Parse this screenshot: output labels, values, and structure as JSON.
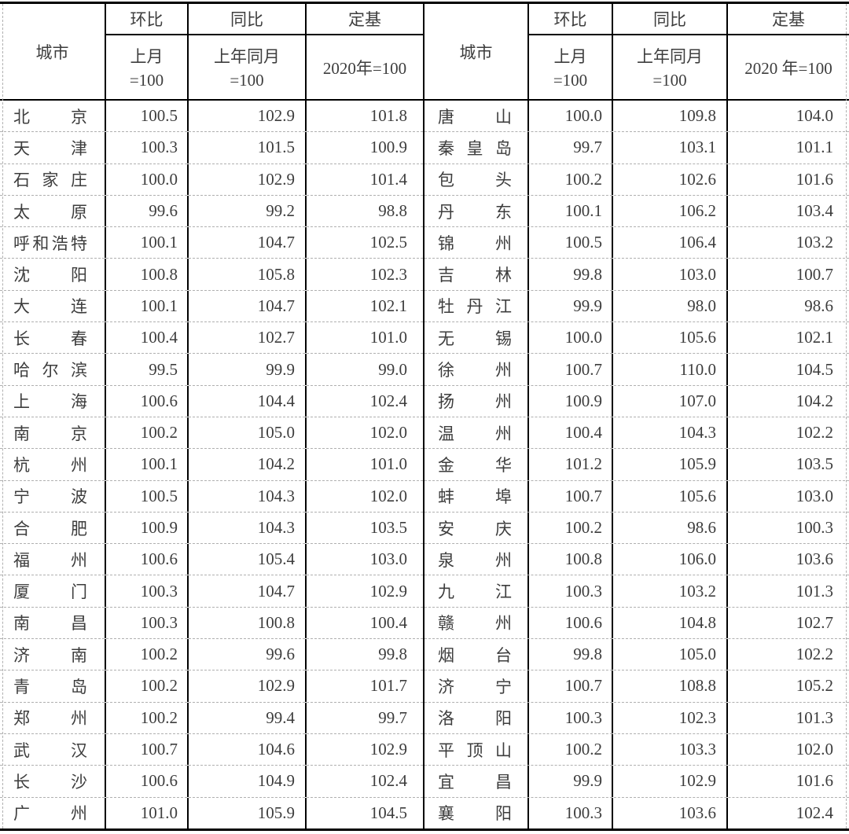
{
  "colors": {
    "border": "#000000",
    "row_divider": "#b0b0b0",
    "text": "#3d3d3d",
    "background": "#ffffff"
  },
  "header": {
    "city_label": "城市",
    "columns": [
      {
        "top": "环比",
        "line1": "上月",
        "line2": "=100"
      },
      {
        "top": "同比",
        "line1": "上年同月",
        "line2": "=100"
      },
      {
        "top": "定基",
        "line1": "2020年=100"
      }
    ],
    "right_base_label": "2020 年=100"
  },
  "left_rows": [
    {
      "city": "北京",
      "mom": "100.5",
      "yoy": "102.9",
      "base": "101.8"
    },
    {
      "city": "天津",
      "mom": "100.3",
      "yoy": "101.5",
      "base": "100.9"
    },
    {
      "city": "石家庄",
      "mom": "100.0",
      "yoy": "102.9",
      "base": "101.4"
    },
    {
      "city": "太原",
      "mom": "99.6",
      "yoy": "99.2",
      "base": "98.8"
    },
    {
      "city": "呼和浩特",
      "mom": "100.1",
      "yoy": "104.7",
      "base": "102.5"
    },
    {
      "city": "沈阳",
      "mom": "100.8",
      "yoy": "105.8",
      "base": "102.3"
    },
    {
      "city": "大连",
      "mom": "100.1",
      "yoy": "104.7",
      "base": "102.1"
    },
    {
      "city": "长春",
      "mom": "100.4",
      "yoy": "102.7",
      "base": "101.0"
    },
    {
      "city": "哈尔滨",
      "mom": "99.5",
      "yoy": "99.9",
      "base": "99.0"
    },
    {
      "city": "上海",
      "mom": "100.6",
      "yoy": "104.4",
      "base": "102.4"
    },
    {
      "city": "南京",
      "mom": "100.2",
      "yoy": "105.0",
      "base": "102.0"
    },
    {
      "city": "杭州",
      "mom": "100.1",
      "yoy": "104.2",
      "base": "101.0"
    },
    {
      "city": "宁波",
      "mom": "100.5",
      "yoy": "104.3",
      "base": "102.0"
    },
    {
      "city": "合肥",
      "mom": "100.9",
      "yoy": "104.3",
      "base": "103.5"
    },
    {
      "city": "福州",
      "mom": "100.6",
      "yoy": "105.4",
      "base": "103.0"
    },
    {
      "city": "厦门",
      "mom": "100.3",
      "yoy": "104.7",
      "base": "102.9"
    },
    {
      "city": "南昌",
      "mom": "100.3",
      "yoy": "100.8",
      "base": "100.4"
    },
    {
      "city": "济南",
      "mom": "100.2",
      "yoy": "99.6",
      "base": "99.8"
    },
    {
      "city": "青岛",
      "mom": "100.2",
      "yoy": "102.9",
      "base": "101.7"
    },
    {
      "city": "郑州",
      "mom": "100.2",
      "yoy": "99.4",
      "base": "99.7"
    },
    {
      "city": "武汉",
      "mom": "100.7",
      "yoy": "104.6",
      "base": "102.9"
    },
    {
      "city": "长沙",
      "mom": "100.6",
      "yoy": "104.9",
      "base": "102.4"
    },
    {
      "city": "广州",
      "mom": "101.0",
      "yoy": "105.9",
      "base": "104.5"
    }
  ],
  "right_rows": [
    {
      "city": "唐山",
      "mom": "100.0",
      "yoy": "109.8",
      "base": "104.0"
    },
    {
      "city": "秦皇岛",
      "mom": "99.7",
      "yoy": "103.1",
      "base": "101.1"
    },
    {
      "city": "包头",
      "mom": "100.2",
      "yoy": "102.6",
      "base": "101.6"
    },
    {
      "city": "丹东",
      "mom": "100.1",
      "yoy": "106.2",
      "base": "103.4"
    },
    {
      "city": "锦州",
      "mom": "100.5",
      "yoy": "106.4",
      "base": "103.2"
    },
    {
      "city": "吉林",
      "mom": "99.8",
      "yoy": "103.0",
      "base": "100.7"
    },
    {
      "city": "牡丹江",
      "mom": "99.9",
      "yoy": "98.0",
      "base": "98.6"
    },
    {
      "city": "无锡",
      "mom": "100.0",
      "yoy": "105.6",
      "base": "102.1"
    },
    {
      "city": "徐州",
      "mom": "100.7",
      "yoy": "110.0",
      "base": "104.5"
    },
    {
      "city": "扬州",
      "mom": "100.9",
      "yoy": "107.0",
      "base": "104.2"
    },
    {
      "city": "温州",
      "mom": "100.4",
      "yoy": "104.3",
      "base": "102.2"
    },
    {
      "city": "金华",
      "mom": "101.2",
      "yoy": "105.9",
      "base": "103.5"
    },
    {
      "city": "蚌埠",
      "mom": "100.7",
      "yoy": "105.6",
      "base": "103.0"
    },
    {
      "city": "安庆",
      "mom": "100.2",
      "yoy": "98.6",
      "base": "100.3"
    },
    {
      "city": "泉州",
      "mom": "100.8",
      "yoy": "106.0",
      "base": "103.6"
    },
    {
      "city": "九江",
      "mom": "100.3",
      "yoy": "103.2",
      "base": "101.3"
    },
    {
      "city": "赣州",
      "mom": "100.6",
      "yoy": "104.8",
      "base": "102.7"
    },
    {
      "city": "烟台",
      "mom": "99.8",
      "yoy": "105.0",
      "base": "102.2"
    },
    {
      "city": "济宁",
      "mom": "100.7",
      "yoy": "108.8",
      "base": "105.2"
    },
    {
      "city": "洛阳",
      "mom": "100.3",
      "yoy": "102.3",
      "base": "101.3"
    },
    {
      "city": "平顶山",
      "mom": "100.2",
      "yoy": "103.3",
      "base": "102.0"
    },
    {
      "city": "宜昌",
      "mom": "99.9",
      "yoy": "102.9",
      "base": "101.6"
    },
    {
      "city": "襄阳",
      "mom": "100.3",
      "yoy": "103.6",
      "base": "102.4"
    }
  ]
}
